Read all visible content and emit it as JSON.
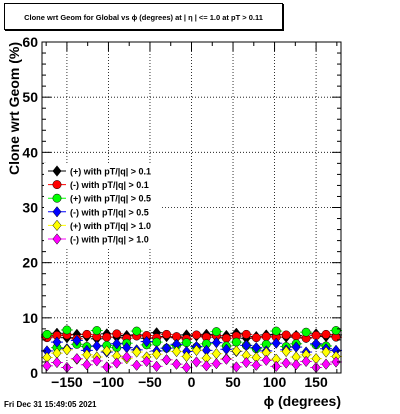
{
  "title": "Clone wrt Geom for Global vs ϕ (degrees) at |  η | <= 1.0 at pT > 0.11",
  "footer": "Fri Dec 31 15:49:05 2021",
  "chart_data": {
    "type": "scatter",
    "xlabel": "ϕ (degrees)",
    "ylabel": "Clone wrt Geom (%)",
    "xlim": [
      -180,
      180
    ],
    "ylim": [
      0,
      60
    ],
    "xticks": [
      -150,
      -100,
      -50,
      0,
      50,
      100,
      150
    ],
    "xtick_labels": [
      "−150",
      "−100",
      "−50",
      "0",
      "50",
      "100",
      "150"
    ],
    "yticks": [
      0,
      10,
      20,
      30,
      40,
      50,
      60
    ],
    "ytick_labels": [
      "0",
      "10",
      "20",
      "30",
      "40",
      "50",
      "60"
    ],
    "grid": true,
    "legend_position": "left-middle",
    "x": [
      -174,
      -162,
      -150,
      -138,
      -126,
      -114,
      -102,
      -90,
      -78,
      -66,
      -54,
      -42,
      -30,
      -18,
      -6,
      6,
      18,
      30,
      42,
      54,
      66,
      78,
      90,
      102,
      114,
      126,
      138,
      150,
      162,
      174
    ],
    "series": [
      {
        "name": "(+) with pT/|q| > 0.1",
        "color": "#000000",
        "marker": "diamond",
        "values": [
          6.7,
          7.2,
          6.4,
          7.0,
          6.6,
          6.2,
          7.1,
          6.5,
          6.8,
          6.9,
          6.3,
          7.3,
          6.6,
          6.4,
          6.9,
          6.7,
          7.0,
          6.5,
          6.8,
          7.2,
          6.3,
          6.6,
          6.9,
          7.0,
          6.5,
          6.8,
          6.4,
          7.1,
          6.6,
          6.9
        ]
      },
      {
        "name": "(-) with pT/|q| > 0.1",
        "color": "#ff0000",
        "marker": "circle",
        "values": [
          6.4,
          6.8,
          6.9,
          6.2,
          7.0,
          6.6,
          6.5,
          7.1,
          6.3,
          6.7,
          6.8,
          6.4,
          7.0,
          6.6,
          6.2,
          6.9,
          6.5,
          6.8,
          6.3,
          6.7,
          7.0,
          6.4,
          6.6,
          6.5,
          6.9,
          6.7,
          6.3,
          6.8,
          7.0,
          6.5
        ]
      },
      {
        "name": "(+) with pT/|q| > 0.5",
        "color": "#00ff00",
        "marker": "circle",
        "values": [
          7.0,
          4.6,
          7.8,
          5.2,
          4.8,
          7.7,
          5.0,
          4.6,
          5.4,
          7.6,
          5.1,
          5.6,
          4.5,
          5.0,
          5.5,
          4.7,
          5.3,
          7.5,
          4.9,
          5.6,
          5.0,
          4.4,
          5.2,
          7.6,
          4.8,
          5.3,
          7.4,
          5.1,
          4.9,
          7.7
        ]
      },
      {
        "name": "(-) with pT/|q| > 0.5",
        "color": "#0000ff",
        "marker": "diamond",
        "values": [
          4.0,
          5.6,
          4.4,
          5.9,
          4.1,
          4.9,
          3.8,
          5.3,
          4.6,
          4.2,
          5.7,
          4.0,
          4.5,
          5.2,
          3.9,
          4.8,
          4.1,
          5.5,
          4.3,
          3.9,
          5.0,
          4.6,
          4.0,
          5.4,
          4.2,
          4.7,
          3.8,
          5.3,
          4.4,
          4.1
        ]
      },
      {
        "name": "(+) with pT/|q| > 1.0",
        "color": "#ffff00",
        "marker": "diamond",
        "values": [
          2.8,
          3.6,
          4.2,
          2.5,
          3.3,
          2.9,
          4.0,
          3.1,
          2.6,
          3.8,
          2.9,
          3.4,
          2.4,
          3.9,
          3.0,
          4.1,
          2.7,
          3.5,
          2.6,
          4.0,
          3.2,
          2.8,
          3.7,
          2.5,
          3.9,
          2.9,
          3.3,
          2.6,
          3.8,
          3.0
        ]
      },
      {
        "name": "(-) with pT/|q| > 1.0",
        "color": "#ff00ff",
        "marker": "diamond",
        "values": [
          1.3,
          1.9,
          1.0,
          2.6,
          1.5,
          2.2,
          1.1,
          1.8,
          2.9,
          1.4,
          2.1,
          1.2,
          2.4,
          1.6,
          1.0,
          2.0,
          1.3,
          1.7,
          2.5,
          1.1,
          1.9,
          1.4,
          2.3,
          1.2,
          1.8,
          1.5,
          2.1,
          1.0,
          1.6,
          2.0
        ]
      }
    ]
  }
}
